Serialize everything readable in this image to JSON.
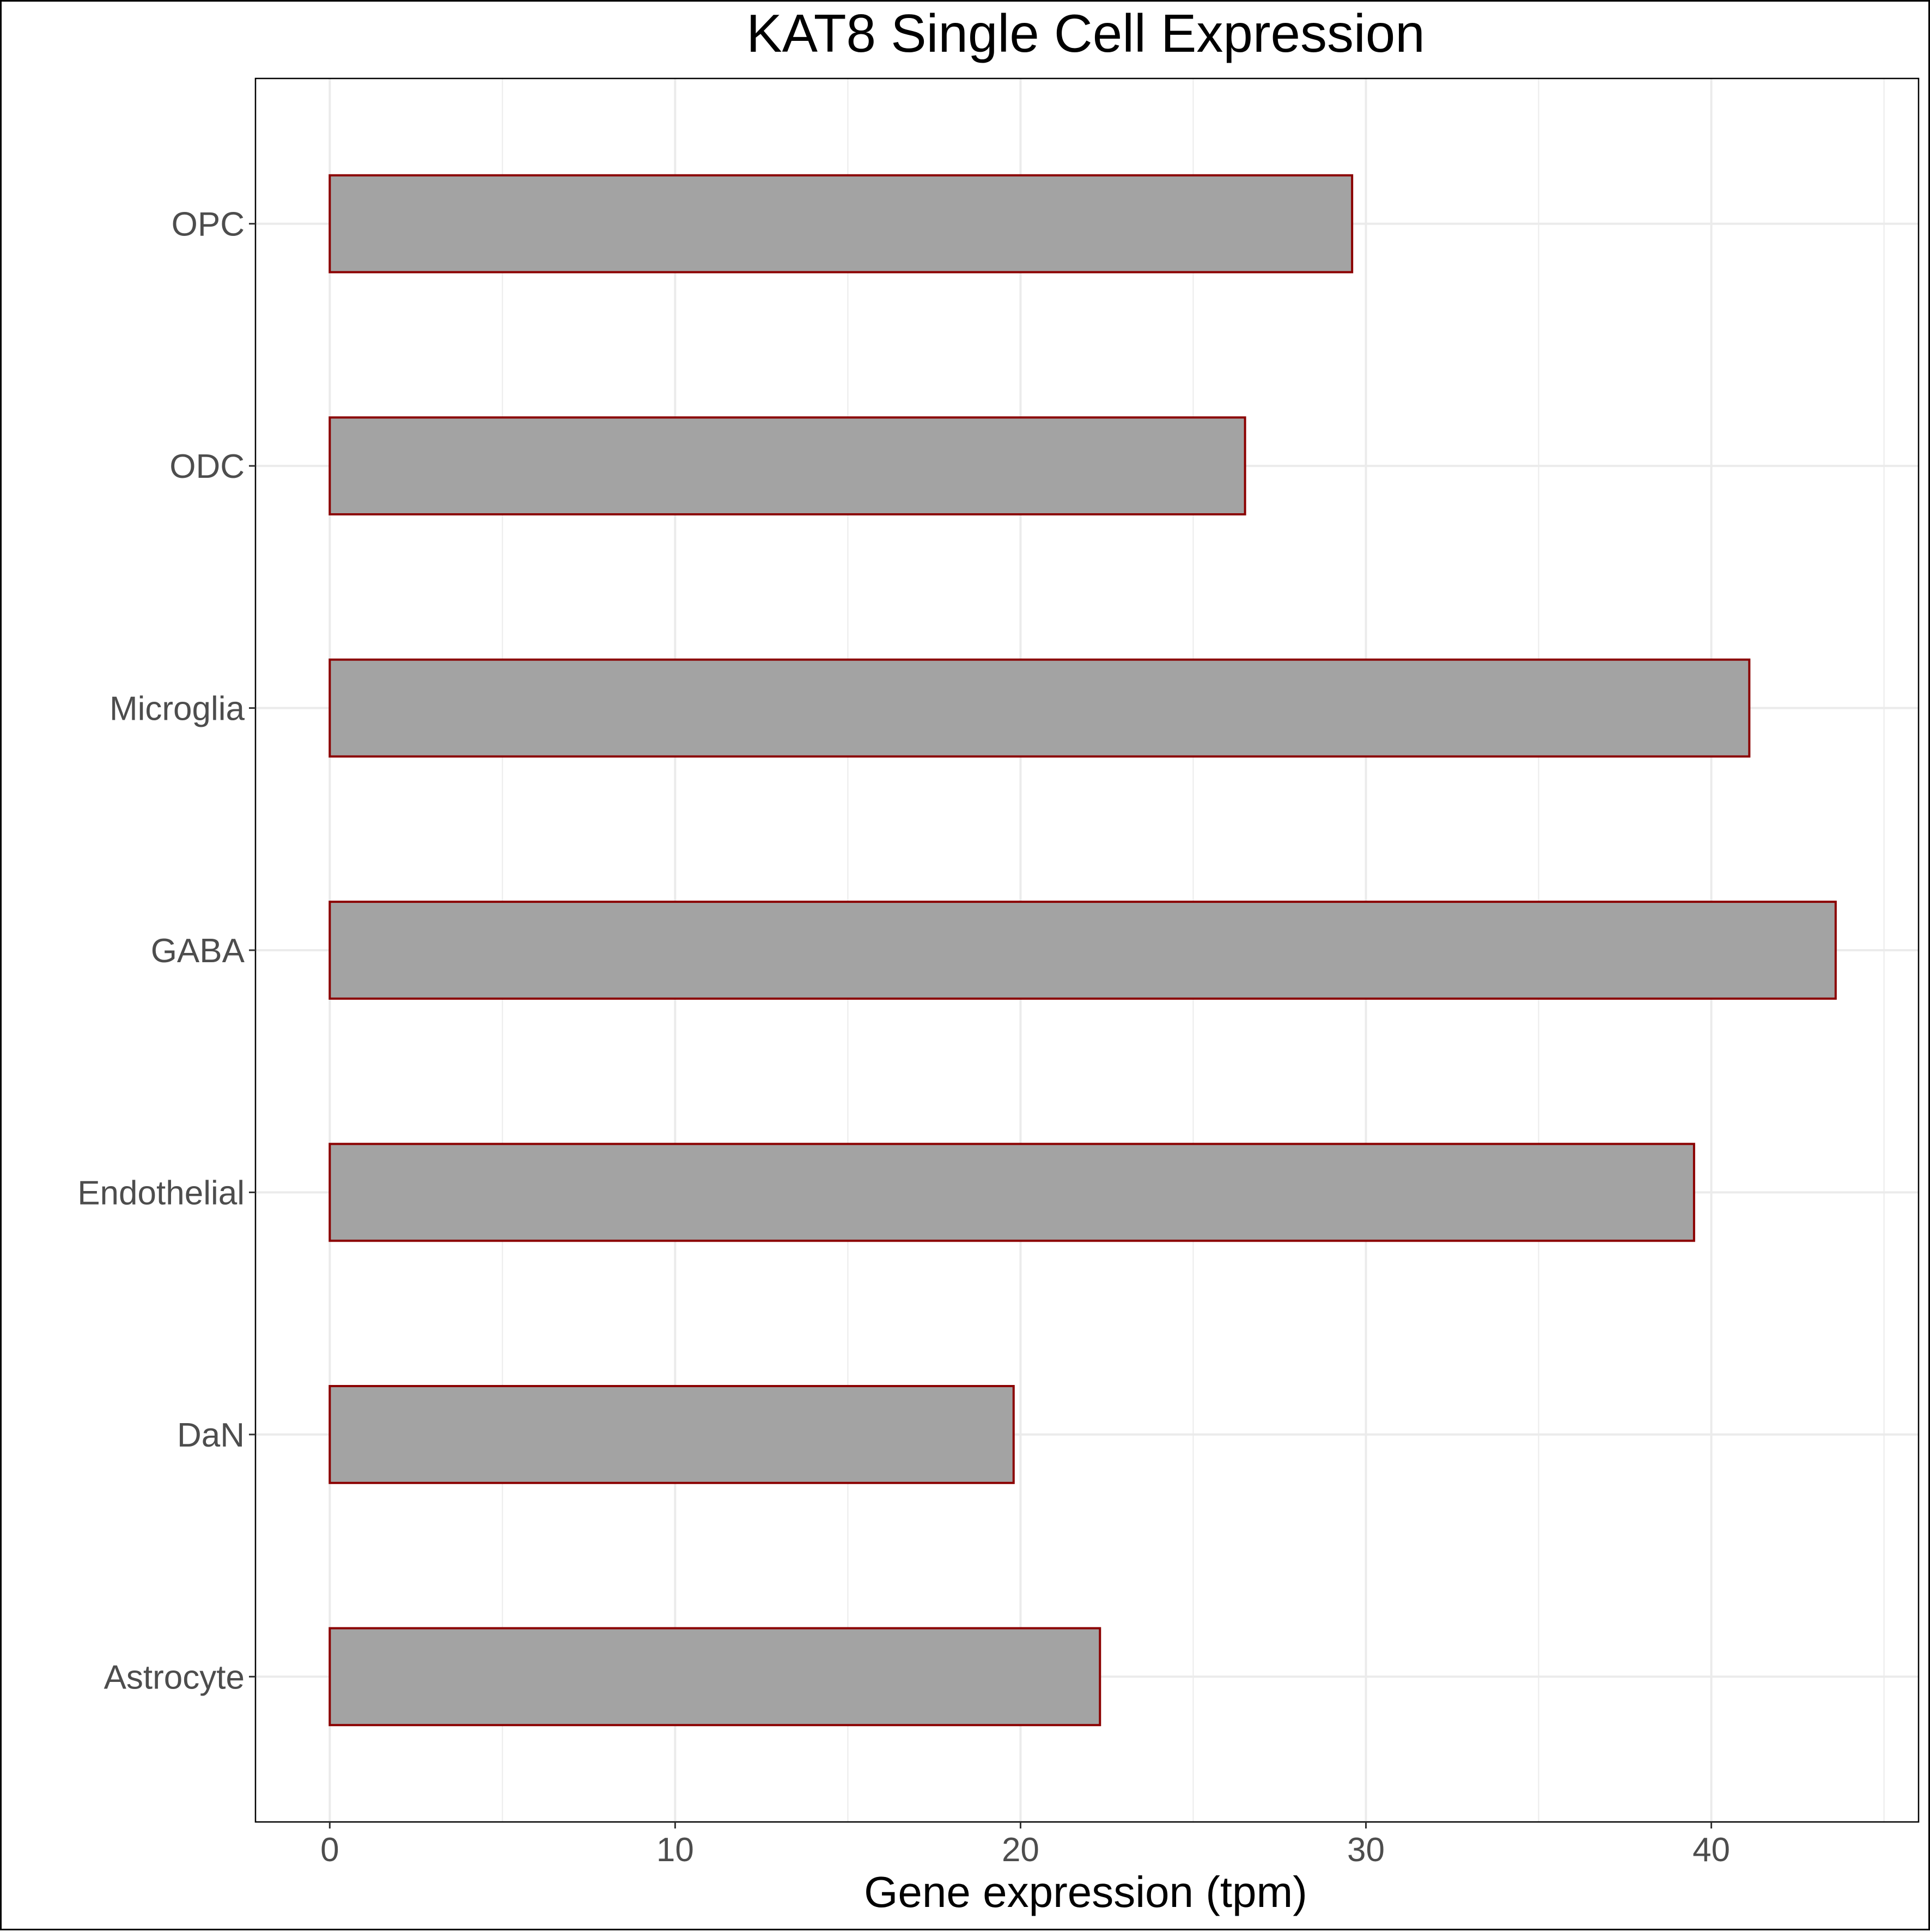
{
  "chart_data": {
    "type": "bar",
    "orientation": "horizontal",
    "title": "KAT8 Single Cell Expression",
    "xlabel": "Gene expression (tpm)",
    "ylabel": "",
    "categories": [
      "Astrocyte",
      "DaN",
      "Endothelial",
      "GABA",
      "Microglia",
      "ODC",
      "OPC"
    ],
    "values": [
      22.3,
      19.8,
      39.5,
      43.6,
      41.1,
      26.5,
      29.6
    ],
    "xlim": [
      -2.15,
      46.0
    ],
    "xticks": [
      0,
      10,
      20,
      30,
      40
    ],
    "xtick_labels": [
      "0",
      "10",
      "20",
      "30",
      "40"
    ],
    "grid": true,
    "legend": "none",
    "colors": {
      "bar_fill": "#a3a3a3",
      "bar_stroke": "#8b0000",
      "grid": "#ebebeb",
      "panel_border": "#000000",
      "tick_label": "#4d4d4d"
    }
  }
}
